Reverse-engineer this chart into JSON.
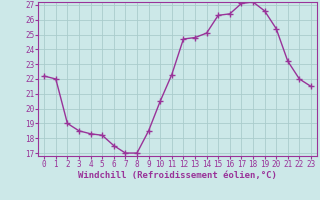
{
  "x": [
    0,
    1,
    2,
    3,
    4,
    5,
    6,
    7,
    8,
    9,
    10,
    11,
    12,
    13,
    14,
    15,
    16,
    17,
    18,
    19,
    20,
    21,
    22,
    23
  ],
  "y": [
    22.2,
    22.0,
    19.0,
    18.5,
    18.3,
    18.2,
    17.5,
    17.0,
    17.0,
    18.5,
    20.5,
    22.3,
    24.7,
    24.8,
    25.1,
    26.3,
    26.4,
    27.1,
    27.2,
    26.6,
    25.4,
    23.2,
    22.0,
    21.5
  ],
  "color": "#993399",
  "bg_color": "#cce8e8",
  "grid_color": "#aacccc",
  "xlabel": "Windchill (Refroidissement éolien,°C)",
  "ylim": [
    17,
    27
  ],
  "xlim": [
    -0.5,
    23.5
  ],
  "yticks": [
    17,
    18,
    19,
    20,
    21,
    22,
    23,
    24,
    25,
    26,
    27
  ],
  "xticks": [
    0,
    1,
    2,
    3,
    4,
    5,
    6,
    7,
    8,
    9,
    10,
    11,
    12,
    13,
    14,
    15,
    16,
    17,
    18,
    19,
    20,
    21,
    22,
    23
  ],
  "marker": "+",
  "markersize": 4,
  "linewidth": 1.0,
  "tick_fontsize": 5.5,
  "xlabel_fontsize": 6.5
}
